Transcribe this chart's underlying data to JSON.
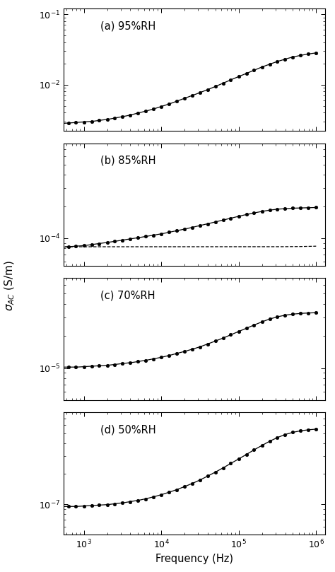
{
  "panels": [
    {
      "label": "(a) 95%RH",
      "ylim": [
        0.0022,
        0.12
      ],
      "has_dashed": false,
      "sigma_dc": null,
      "data_x": [
        500.0,
        630.0,
        790.0,
        1000.0,
        1260.0,
        1580.0,
        2000.0,
        2510.0,
        3160.0,
        3980.0,
        5000.0,
        6300.0,
        7900.0,
        10000.0,
        12600.0,
        15800.0,
        20000.0,
        25100.0,
        31600.0,
        39800.0,
        50000.0,
        63000.0,
        79000.0,
        100000.0,
        126000.0,
        158000.0,
        200000.0,
        251000.0,
        316000.0,
        398000.0,
        500000.0,
        630000.0,
        790000.0,
        1000000.0
      ],
      "data_y": [
        0.0028,
        0.00285,
        0.0029,
        0.00295,
        0.003,
        0.0031,
        0.0032,
        0.00335,
        0.0035,
        0.0037,
        0.00395,
        0.0042,
        0.0045,
        0.0049,
        0.0053,
        0.0058,
        0.0064,
        0.007,
        0.0077,
        0.0085,
        0.0094,
        0.0105,
        0.0117,
        0.013,
        0.0144,
        0.016,
        0.0178,
        0.0195,
        0.0213,
        0.023,
        0.0247,
        0.026,
        0.0272,
        0.0282
      ]
    },
    {
      "label": "(b) 85%RH",
      "ylim": [
        5.5e-05,
        0.0008
      ],
      "has_dashed": true,
      "sigma_dc": 8.3e-05,
      "dashed_params": {
        "A": 8.3e-05,
        "B": 1.1e-18,
        "n": 2.0
      },
      "data_x": [
        500.0,
        630.0,
        790.0,
        1000.0,
        1260.0,
        1580.0,
        2000.0,
        2510.0,
        3160.0,
        3980.0,
        5000.0,
        6300.0,
        7900.0,
        10000.0,
        12600.0,
        15800.0,
        20000.0,
        25100.0,
        31600.0,
        39800.0,
        50000.0,
        63000.0,
        79000.0,
        100000.0,
        126000.0,
        158000.0,
        200000.0,
        251000.0,
        316000.0,
        398000.0,
        500000.0,
        630000.0,
        790000.0,
        1000000.0
      ],
      "data_y": [
        8.2e-05,
        8.3e-05,
        8.4e-05,
        8.5e-05,
        8.7e-05,
        8.9e-05,
        9.1e-05,
        9.35e-05,
        9.6e-05,
        9.85e-05,
        0.000101,
        0.000104,
        0.000107,
        0.00011,
        0.000114,
        0.000118,
        0.000122,
        0.000127,
        0.000132,
        0.000137,
        0.000143,
        0.000149,
        0.000155,
        0.000162,
        0.000168,
        0.000174,
        0.00018,
        0.000185,
        0.000189,
        0.000191,
        0.000193,
        0.000194,
        0.000195,
        0.000196
      ]
    },
    {
      "label": "(c) 70%RH",
      "ylim": [
        5e-06,
        7e-05
      ],
      "has_dashed": false,
      "sigma_dc": null,
      "data_x": [
        500.0,
        630.0,
        790.0,
        1000.0,
        1260.0,
        1580.0,
        2000.0,
        2510.0,
        3160.0,
        3980.0,
        5000.0,
        6300.0,
        7900.0,
        10000.0,
        12600.0,
        15800.0,
        20000.0,
        25100.0,
        31600.0,
        39800.0,
        50000.0,
        63000.0,
        79000.0,
        100000.0,
        126000.0,
        158000.0,
        200000.0,
        251000.0,
        316000.0,
        398000.0,
        500000.0,
        630000.0,
        790000.0,
        1000000.0
      ],
      "data_y": [
        1.02e-05,
        1.02e-05,
        1.02e-05,
        1.03e-05,
        1.04e-05,
        1.05e-05,
        1.06e-05,
        1.08e-05,
        1.1e-05,
        1.12e-05,
        1.15e-05,
        1.18e-05,
        1.22e-05,
        1.26e-05,
        1.31e-05,
        1.37e-05,
        1.43e-05,
        1.5e-05,
        1.58e-05,
        1.68e-05,
        1.79e-05,
        1.91e-05,
        2.05e-05,
        2.2e-05,
        2.36e-05,
        2.53e-05,
        2.71e-05,
        2.88e-05,
        3.02e-05,
        3.13e-05,
        3.2e-05,
        3.25e-05,
        3.28e-05,
        3.3e-05
      ]
    },
    {
      "label": "(d) 50%RH",
      "ylim": [
        5e-08,
        8e-07
      ],
      "has_dashed": false,
      "sigma_dc": null,
      "data_x": [
        500.0,
        630.0,
        790.0,
        1000.0,
        1260.0,
        1580.0,
        2000.0,
        2510.0,
        3160.0,
        3980.0,
        5000.0,
        6300.0,
        7900.0,
        10000.0,
        12600.0,
        15800.0,
        20000.0,
        25100.0,
        31600.0,
        39800.0,
        50000.0,
        63000.0,
        79000.0,
        100000.0,
        126000.0,
        158000.0,
        200000.0,
        251000.0,
        316000.0,
        398000.0,
        500000.0,
        630000.0,
        790000.0,
        1000000.0
      ],
      "data_y": [
        9.5e-08,
        9.5e-08,
        9.5e-08,
        9.6e-08,
        9.7e-08,
        9.8e-08,
        9.9e-08,
        1.01e-07,
        1.03e-07,
        1.06e-07,
        1.09e-07,
        1.13e-07,
        1.18e-07,
        1.24e-07,
        1.31e-07,
        1.39e-07,
        1.49e-07,
        1.6e-07,
        1.73e-07,
        1.89e-07,
        2.07e-07,
        2.28e-07,
        2.52e-07,
        2.79e-07,
        3.09e-07,
        3.43e-07,
        3.79e-07,
        4.17e-07,
        4.53e-07,
        4.85e-07,
        5.1e-07,
        5.28e-07,
        5.4e-07,
        5.48e-07
      ]
    }
  ],
  "xlim": [
    550.0,
    1300000.0
  ],
  "xlabel": "Frequency (Hz)",
  "ylabel": "$\\sigma_{AC}$ (S/m)",
  "background_color": "#ffffff"
}
